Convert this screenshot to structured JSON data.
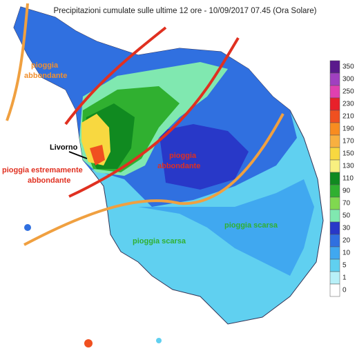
{
  "title": "Precipitazioni cumulate sulle ultime 12 ore - 10/09/2017 07.45 (Ora Solare)",
  "annotations": {
    "nw": [
      "pioggia",
      "abbondante"
    ],
    "livorno": "Livorno",
    "extreme": [
      "pioggia estremamente",
      "abbondante"
    ],
    "center": [
      "pioggia",
      "abbondante"
    ],
    "east": "pioggia scarsa",
    "south": "pioggia scarsa"
  },
  "legend": [
    {
      "label": "350",
      "color": "#5a1a8c"
    },
    {
      "label": "300",
      "color": "#a040c0"
    },
    {
      "label": "250",
      "color": "#e040b0"
    },
    {
      "label": "230",
      "color": "#e8202a"
    },
    {
      "label": "210",
      "color": "#f05020"
    },
    {
      "label": "190",
      "color": "#f88c20"
    },
    {
      "label": "170",
      "color": "#f8b040"
    },
    {
      "label": "150",
      "color": "#f8d840"
    },
    {
      "label": "130",
      "color": "#f8f080"
    },
    {
      "label": "110",
      "color": "#108a20"
    },
    {
      "label": "90",
      "color": "#30b030"
    },
    {
      "label": "70",
      "color": "#80d850"
    },
    {
      "label": "50",
      "color": "#80e8b0"
    },
    {
      "label": "30",
      "color": "#2838c8"
    },
    {
      "label": "20",
      "color": "#3070e0"
    },
    {
      "label": "10",
      "color": "#40a8f0"
    },
    {
      "label": "5",
      "color": "#60d0f0"
    },
    {
      "label": "1",
      "color": "#b8f0f8"
    },
    {
      "label": "0",
      "color": "#ffffff"
    }
  ]
}
